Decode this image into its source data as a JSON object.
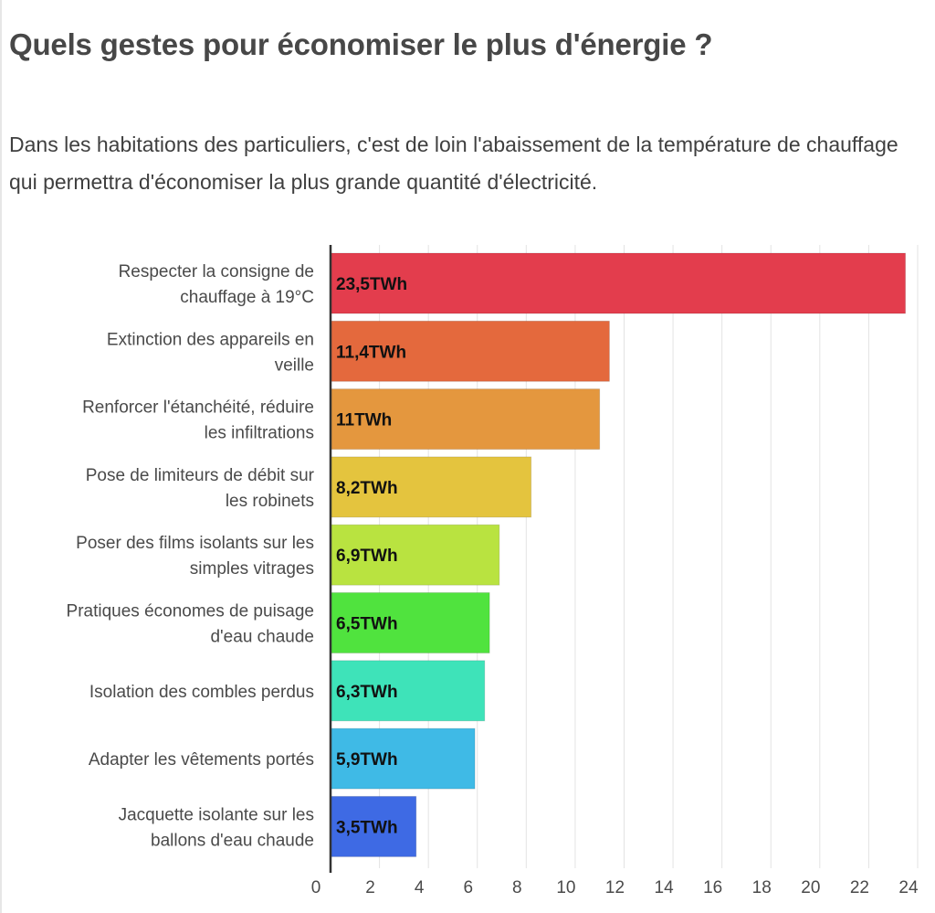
{
  "header": {
    "title": "Quels gestes pour économiser le plus d'énergie ?",
    "subtitle": "Dans les habitations des particuliers, c'est de loin l'abaissement de la température de chauffage qui permettra d'économiser la plus grande quantité d'électricité."
  },
  "chart_data": {
    "type": "bar",
    "orientation": "horizontal",
    "categories": [
      [
        "Respecter la consigne de",
        "chauffage à 19°C"
      ],
      [
        "Extinction des appareils en",
        "veille"
      ],
      [
        "Renforcer l'étanchéité, réduire",
        "les infiltrations"
      ],
      [
        "Pose de limiteurs de débit sur",
        "les robinets"
      ],
      [
        "Poser des films isolants sur les",
        "simples vitrages"
      ],
      [
        "Pratiques économes de puisage",
        "d'eau chaude"
      ],
      [
        "Isolation des combles perdus"
      ],
      [
        "Adapter les vêtements portés"
      ],
      [
        "Jacquette isolante sur les",
        "ballons d'eau chaude"
      ]
    ],
    "values": [
      23.5,
      11.4,
      11,
      8.2,
      6.9,
      6.5,
      6.3,
      5.9,
      3.5
    ],
    "data_labels": [
      "23,5TWh",
      "11,4TWh",
      "11TWh",
      "8,2TWh",
      "6,9TWh",
      "6,5TWh",
      "6,3TWh",
      "5,9TWh",
      "3,5TWh"
    ],
    "colors": [
      "#e33d4d",
      "#e4693d",
      "#e4973e",
      "#e4c43e",
      "#b9e340",
      "#50e33e",
      "#3ee3b9",
      "#3fbae6",
      "#3e6ae4"
    ],
    "xticks": [
      0,
      2,
      4,
      6,
      8,
      10,
      12,
      14,
      16,
      18,
      20,
      22,
      24
    ],
    "xlim": [
      0,
      24
    ],
    "grid": true,
    "xlabel": "",
    "ylabel": ""
  }
}
